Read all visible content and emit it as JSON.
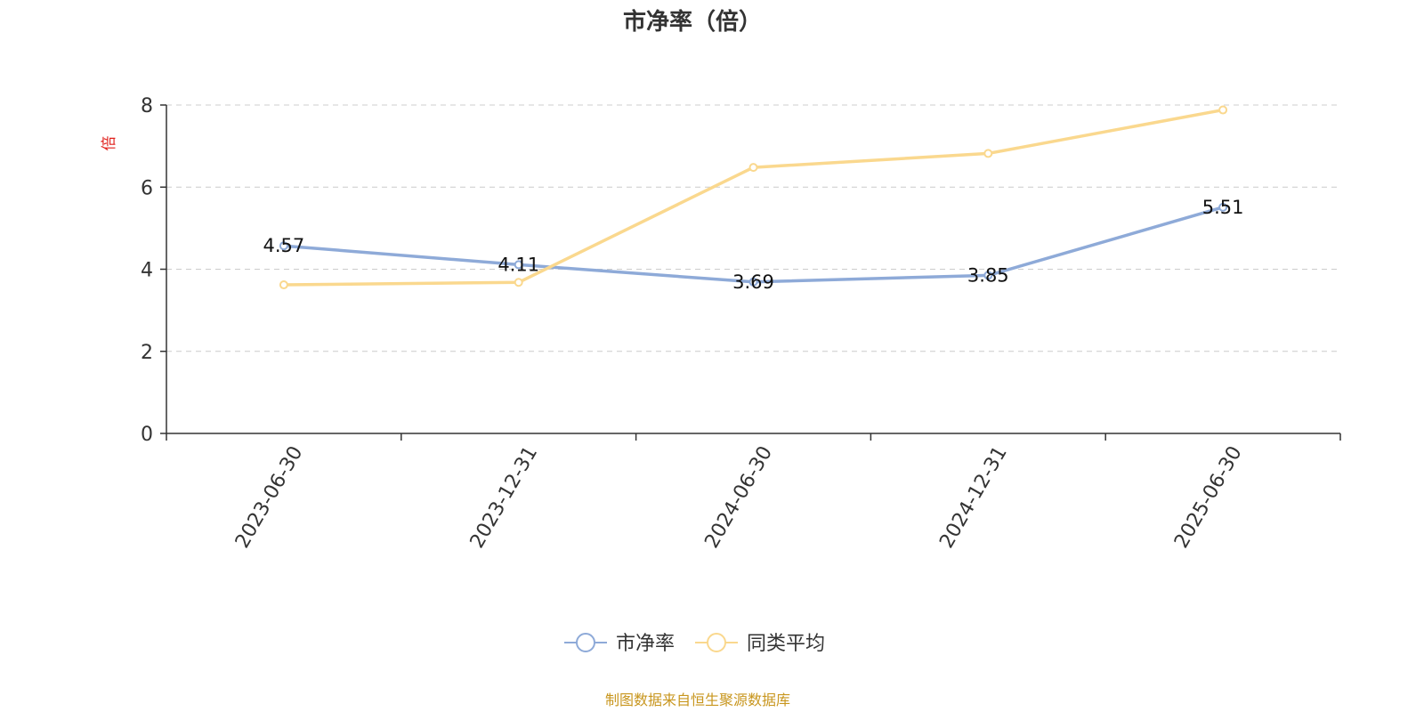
{
  "chart_data": {
    "type": "line",
    "title": "市净率（倍）",
    "ylabel": "倍",
    "x": [
      "2023-06-30",
      "2023-12-31",
      "2024-06-30",
      "2024-12-31",
      "2025-06-30"
    ],
    "ylim": [
      0,
      8
    ],
    "yticks": [
      0,
      2,
      4,
      6,
      8
    ],
    "grid": true,
    "legend_position": "bottom-center",
    "series": [
      {
        "name": "市净率",
        "values": [
          4.57,
          4.11,
          3.69,
          3.85,
          5.51
        ],
        "color": "#8eaad8",
        "show_labels": true
      },
      {
        "name": "同类平均",
        "values": [
          3.62,
          3.68,
          6.48,
          6.82,
          7.88
        ],
        "color": "#fad88e",
        "show_labels": false
      }
    ]
  },
  "footer": {
    "source": "制图数据来自恒生聚源数据库",
    "source_color": "#c8961e"
  },
  "colors": {
    "ylabel": "#e0201c",
    "axis": "#333333",
    "grid": "#cccccc"
  }
}
